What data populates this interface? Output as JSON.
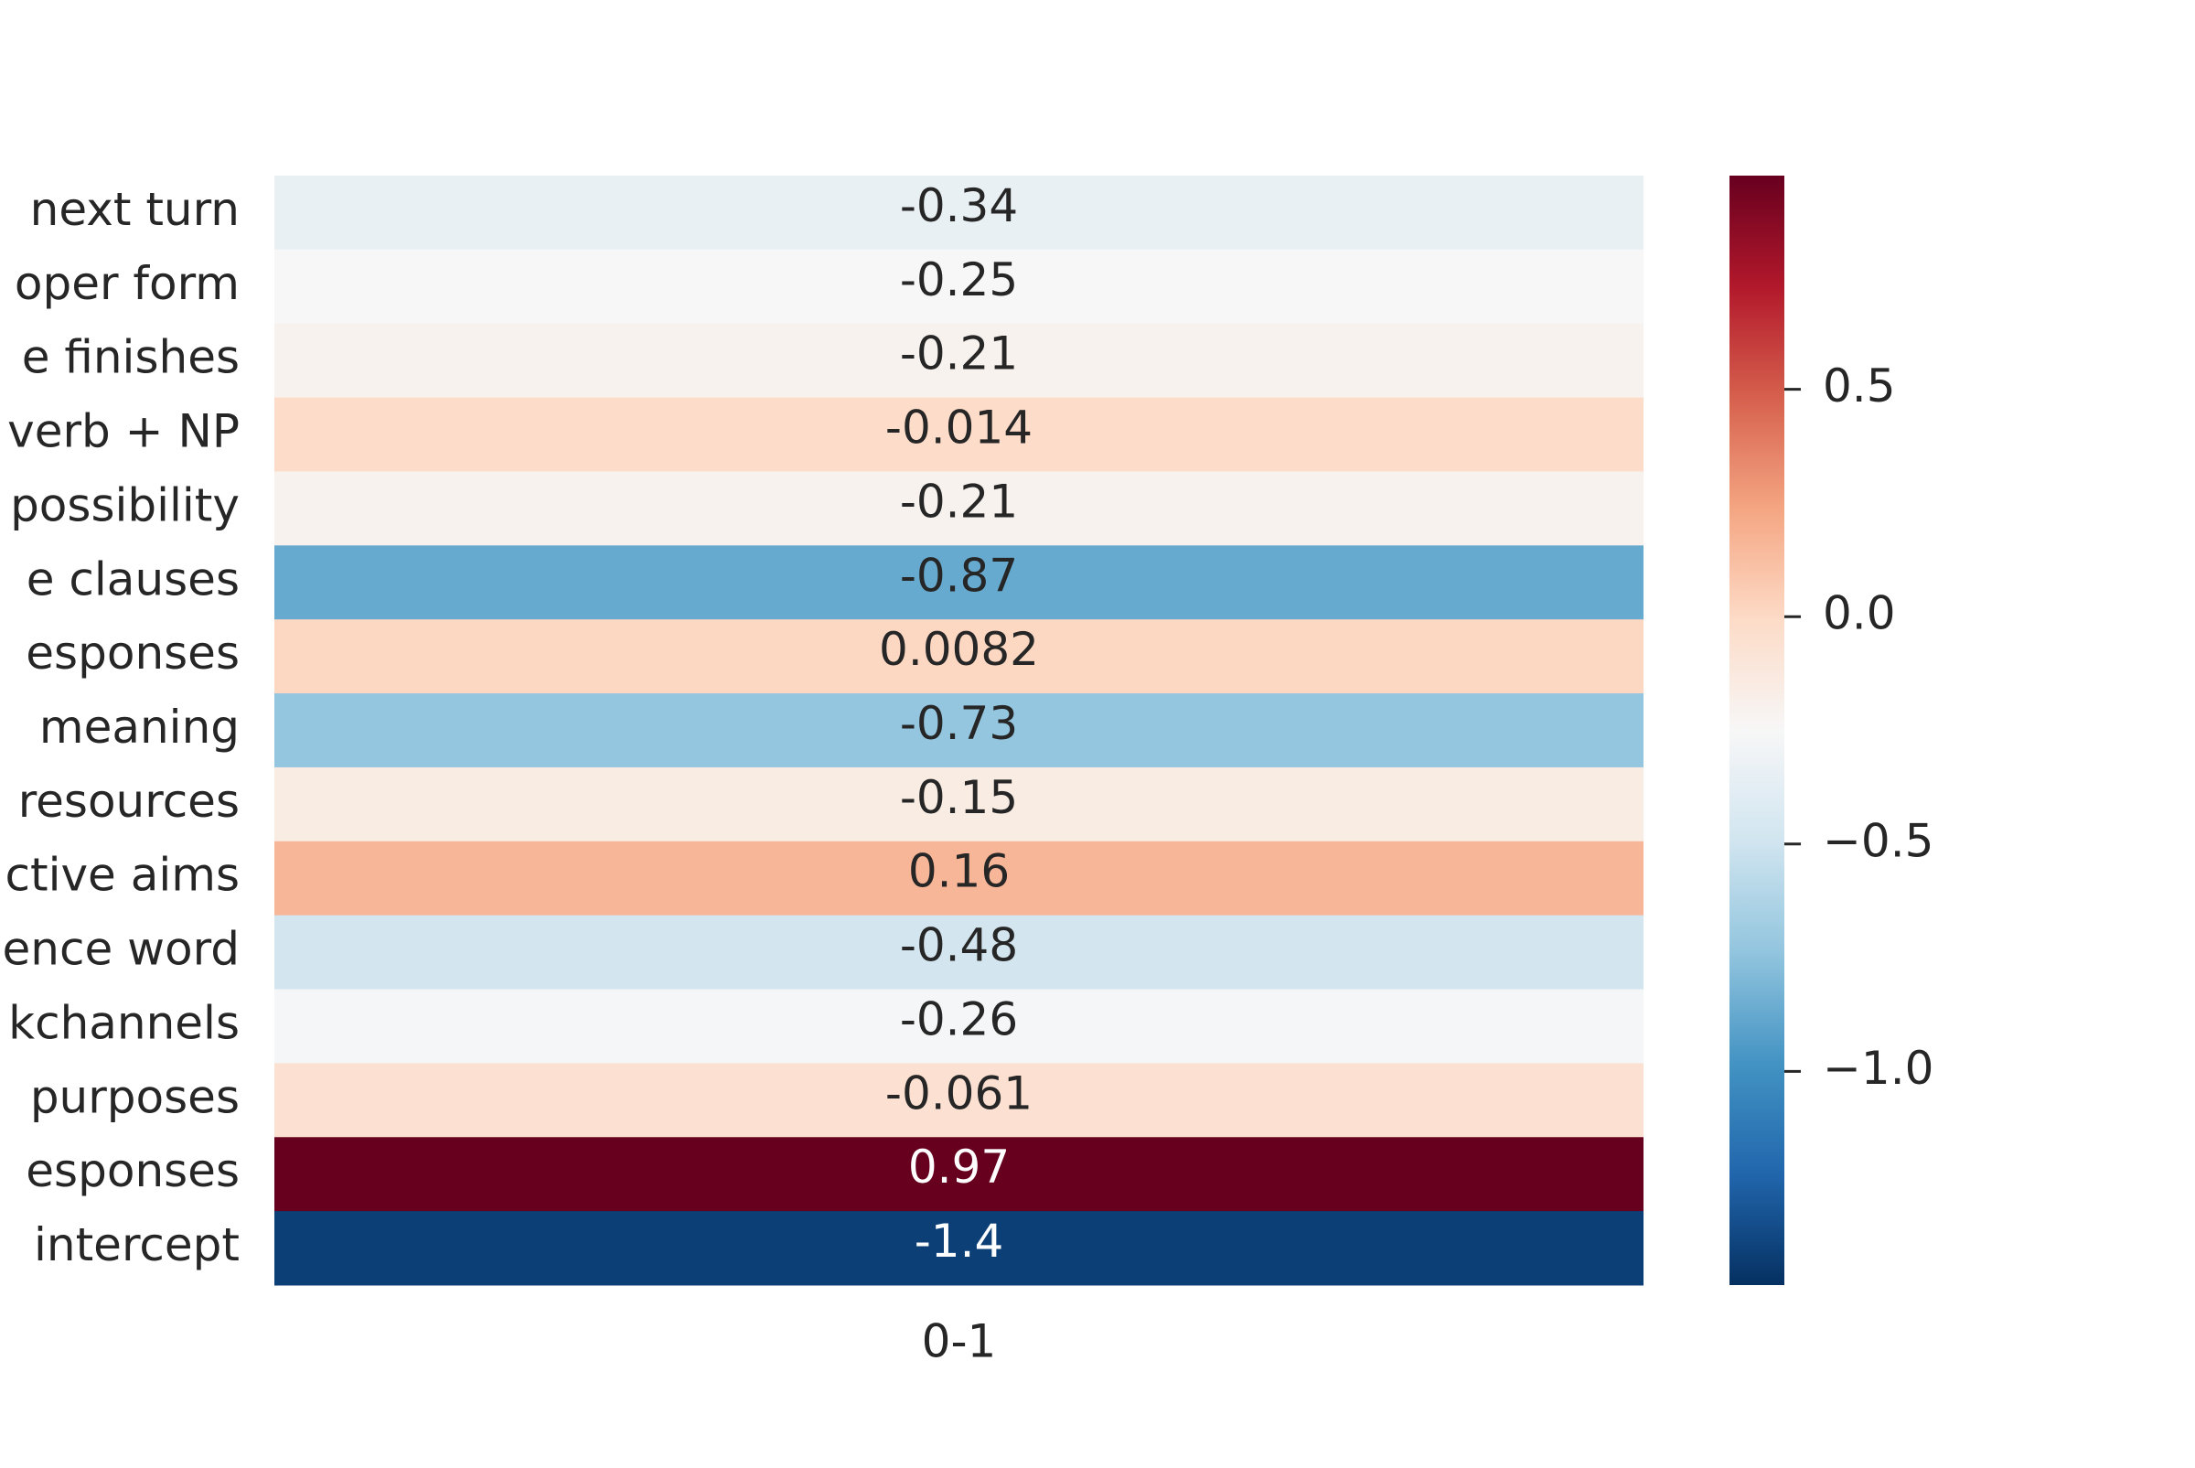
{
  "chart_data": {
    "type": "heatmap",
    "title": "",
    "xlabel": "",
    "ylabel": "",
    "x_categories": [
      "0-1"
    ],
    "y_categories": [
      "next turn",
      "oper form",
      "e finishes",
      "verb + NP",
      "possibility",
      "e clauses",
      "esponses",
      "meaning",
      "resources",
      "ctive aims",
      "ence word",
      "kchannels",
      "purposes",
      "esponses",
      "intercept"
    ],
    "values": [
      -0.34,
      -0.25,
      -0.21,
      -0.014,
      -0.21,
      -0.87,
      0.0082,
      -0.73,
      -0.15,
      0.16,
      -0.48,
      -0.26,
      -0.061,
      0.97,
      -1.4
    ],
    "annotations": [
      "-0.34",
      "-0.25",
      "-0.21",
      "-0.014",
      "-0.21",
      "-0.87",
      "0.0082",
      "-0.73",
      "-0.15",
      "0.16",
      "-0.48",
      "-0.26",
      "-0.061",
      "0.97",
      "-1.4"
    ],
    "colormap": "RdBu_r",
    "colorbar": {
      "vmin": -1.47,
      "vmax": 0.97,
      "ticks": [
        0.5,
        0.0,
        -0.5,
        -1.0
      ],
      "tick_labels": [
        "0.5",
        "0.0",
        "−0.5",
        "−1.0"
      ]
    },
    "grid": false,
    "legend": "colorbar-right",
    "colors": {
      "text_dark": "#262626",
      "text_light": "#ffffff",
      "tick": "#262626"
    }
  }
}
